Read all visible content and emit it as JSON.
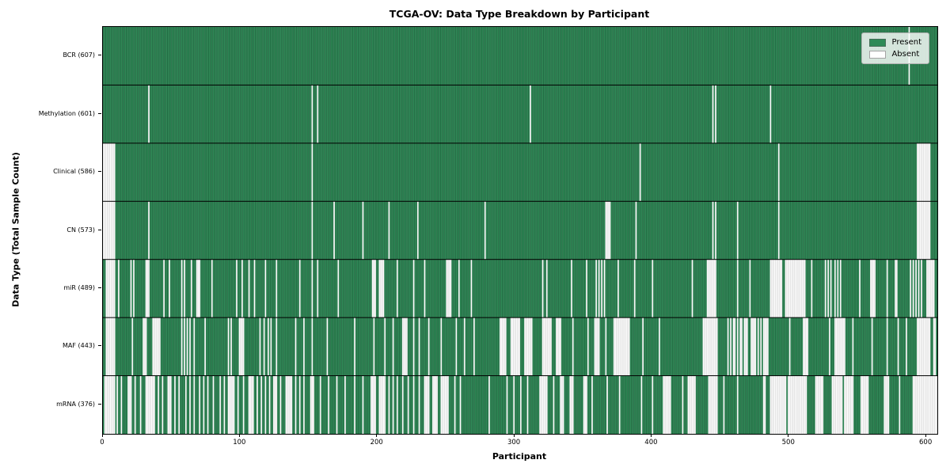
{
  "chart_data": {
    "type": "heatmap",
    "title": "TCGA-OV: Data Type Breakdown by Participant",
    "xlabel": "Participant",
    "ylabel": "Data Type (Total Sample Count)",
    "x_ticks": [
      0,
      100,
      200,
      300,
      400,
      500,
      600
    ],
    "x_range": [
      0,
      608
    ],
    "n_participants": 608,
    "grid": false,
    "legend_position": "upper right",
    "legend": [
      {
        "label": "Present",
        "color": "#2e8b57"
      },
      {
        "label": "Absent",
        "color": "#ffffff"
      }
    ],
    "colors": {
      "present": "#2e8b57",
      "absent": "#ffffff",
      "present_edge": "rgba(0,0,0,0.38)",
      "absent_edge": "rgba(0,0,0,0.20)",
      "row_separator": "#000000",
      "spine": "#000000"
    },
    "rows": [
      {
        "label": "BCR (607)",
        "data_type": "BCR",
        "present_count": 607,
        "absent": [
          587
        ]
      },
      {
        "label": "Methylation (601)",
        "data_type": "Methylation",
        "present_count": 601,
        "absent": [
          33,
          152,
          156,
          311,
          444,
          446,
          486
        ]
      },
      {
        "label": "Clinical (586)",
        "data_type": "Clinical",
        "present_count": 586,
        "absent": [
          [
            0,
            8
          ],
          152,
          391,
          492,
          [
            593,
            602
          ]
        ]
      },
      {
        "label": "CN (573)",
        "data_type": "CN",
        "present_count": 573,
        "absent": [
          [
            0,
            8
          ],
          33,
          152,
          168,
          189,
          208,
          229,
          278,
          [
            366,
            369
          ],
          388,
          444,
          446,
          462,
          492,
          [
            593,
            602
          ]
        ]
      },
      {
        "label": "miR (489)",
        "data_type": "miR",
        "present_count": 489,
        "absent": [
          [
            2,
            8
          ],
          11,
          20,
          22,
          [
            31,
            33
          ],
          44,
          48,
          57,
          59,
          64,
          [
            68,
            70
          ],
          79,
          97,
          101,
          106,
          110,
          118,
          126,
          143,
          152,
          156,
          171,
          [
            196,
            198
          ],
          [
            201,
            204
          ],
          214,
          226,
          234,
          [
            250,
            253
          ],
          259,
          268,
          320,
          323,
          341,
          352,
          359,
          361,
          363,
          365,
          375,
          387,
          400,
          429,
          [
            440,
            446
          ],
          462,
          471,
          [
            486,
            494
          ],
          [
            497,
            511
          ],
          516,
          526,
          528,
          530,
          533,
          535,
          537,
          551,
          [
            559,
            562
          ],
          571,
          577,
          578,
          588,
          590,
          592,
          594,
          596,
          [
            600,
            605
          ]
        ]
      },
      {
        "label": "MAF (443)",
        "data_type": "MAF",
        "present_count": 443,
        "absent": [
          [
            2,
            8
          ],
          21,
          [
            29,
            31
          ],
          [
            36,
            41
          ],
          57,
          59,
          61,
          63,
          66,
          74,
          91,
          93,
          [
            99,
            102
          ],
          114,
          117,
          120,
          122,
          126,
          140,
          146,
          152,
          163,
          183,
          197,
          205,
          211,
          [
            218,
            221
          ],
          226,
          230,
          237,
          246,
          257,
          263,
          270,
          [
            289,
            293
          ],
          [
            297,
            303
          ],
          [
            307,
            312
          ],
          [
            320,
            326
          ],
          [
            330,
            333
          ],
          342,
          353,
          [
            358,
            361
          ],
          366,
          [
            372,
            383
          ],
          393,
          405,
          [
            437,
            447
          ],
          455,
          457,
          459,
          460,
          462,
          464,
          465,
          467,
          468,
          469,
          [
            472,
            475
          ],
          477,
          479,
          [
            481,
            484
          ],
          500,
          [
            510,
            513
          ],
          529,
          [
            533,
            540
          ],
          546,
          560,
          571,
          579,
          585,
          [
            593,
            602
          ],
          605,
          606
        ]
      },
      {
        "label": "mRNA (376)",
        "data_type": "mRNA",
        "present_count": 376,
        "absent": [
          [
            1,
            8
          ],
          10,
          13,
          [
            18,
            20
          ],
          23,
          27,
          [
            31,
            37
          ],
          40,
          43,
          [
            47,
            49
          ],
          52,
          55,
          60,
          63,
          66,
          70,
          73,
          76,
          80,
          85,
          88,
          [
            91,
            95
          ],
          98,
          102,
          [
            106,
            109
          ],
          112,
          115,
          118,
          121,
          [
            124,
            126
          ],
          129,
          [
            133,
            137
          ],
          140,
          143,
          146,
          [
            151,
            153
          ],
          158,
          164,
          170,
          176,
          183,
          189,
          [
            195,
            198
          ],
          [
            201,
            205
          ],
          208,
          211,
          214,
          218,
          222,
          226,
          230,
          [
            234,
            237
          ],
          [
            240,
            243
          ],
          [
            246,
            251
          ],
          256,
          260,
          281,
          294,
          299,
          304,
          309,
          [
            318,
            323
          ],
          328,
          [
            333,
            335
          ],
          [
            340,
            342
          ],
          [
            350,
            352
          ],
          356,
          367,
          376,
          392,
          400,
          [
            408,
            413
          ],
          422,
          [
            426,
            431
          ],
          [
            441,
            447
          ],
          452,
          462,
          481,
          482,
          [
            486,
            497
          ],
          [
            499,
            512
          ],
          [
            519,
            524
          ],
          [
            531,
            538
          ],
          [
            540,
            546
          ],
          [
            552,
            557
          ],
          [
            569,
            572
          ],
          580,
          [
            590,
            607
          ]
        ]
      }
    ]
  }
}
